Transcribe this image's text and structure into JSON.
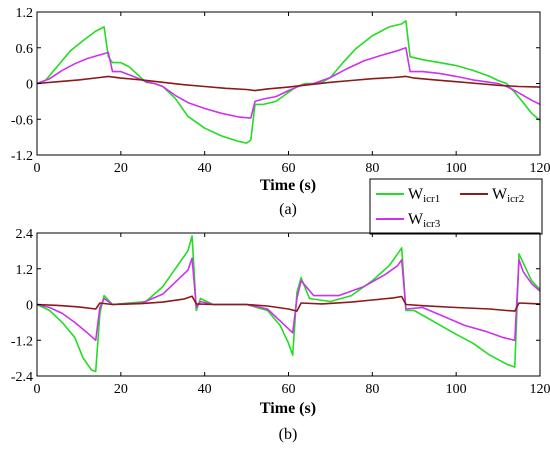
{
  "chart_data": [
    {
      "type": "line",
      "caption": "(a)",
      "xlabel": "Time (s)",
      "ylabel": "",
      "xlim": [
        0,
        120
      ],
      "ylim": [
        -1.2,
        1.2
      ],
      "xticks": [
        "0",
        "20",
        "40",
        "60",
        "80",
        "100",
        "120"
      ],
      "yticks": [
        "1.2",
        "0.6",
        "0",
        "-0.6",
        "-1.2"
      ],
      "grid": false,
      "series": [
        {
          "name": "W_icr1",
          "color": "#22dd22",
          "x": [
            0,
            2,
            5,
            8,
            11,
            14,
            16,
            17,
            18,
            20,
            22,
            24,
            26,
            28,
            30,
            33,
            36,
            40,
            44,
            48,
            50,
            51,
            52,
            54,
            57,
            60,
            62,
            64,
            66,
            68,
            70,
            73,
            76,
            80,
            84,
            87,
            88,
            89,
            92,
            96,
            100,
            104,
            108,
            110,
            112,
            114,
            116,
            118,
            120
          ],
          "y": [
            0,
            0.05,
            0.3,
            0.55,
            0.72,
            0.88,
            0.95,
            0.45,
            0.35,
            0.35,
            0.28,
            0.15,
            0.02,
            0,
            -0.05,
            -0.25,
            -0.55,
            -0.75,
            -0.88,
            -0.97,
            -1.0,
            -0.95,
            -0.35,
            -0.35,
            -0.3,
            -0.15,
            -0.05,
            0,
            0,
            0.02,
            0.1,
            0.35,
            0.58,
            0.8,
            0.95,
            1.0,
            1.05,
            0.45,
            0.4,
            0.35,
            0.3,
            0.22,
            0.12,
            0.05,
            0,
            -0.15,
            -0.32,
            -0.5,
            -0.62
          ]
        },
        {
          "name": "W_icr2",
          "color": "#8b1a1a",
          "x": [
            0,
            5,
            10,
            15,
            17,
            20,
            25,
            30,
            35,
            40,
            45,
            50,
            52,
            55,
            60,
            65,
            70,
            75,
            80,
            85,
            88,
            90,
            95,
            100,
            105,
            110,
            115,
            120
          ],
          "y": [
            0,
            0.03,
            0.06,
            0.1,
            0.12,
            0.09,
            0.06,
            0.02,
            -0.02,
            -0.05,
            -0.08,
            -0.1,
            -0.12,
            -0.09,
            -0.06,
            -0.02,
            0.02,
            0.05,
            0.08,
            0.1,
            0.12,
            0.09,
            0.06,
            0.03,
            0,
            -0.03,
            -0.05,
            -0.06
          ]
        },
        {
          "name": "W_icr3",
          "color": "#cc33ee",
          "x": [
            0,
            3,
            6,
            9,
            12,
            15,
            17,
            18,
            20,
            23,
            26,
            28,
            30,
            33,
            36,
            40,
            44,
            48,
            51,
            52,
            54,
            57,
            60,
            63,
            66,
            70,
            74,
            78,
            82,
            86,
            88,
            89,
            92,
            96,
            100,
            104,
            108,
            110,
            112,
            114,
            116,
            118,
            120
          ],
          "y": [
            0,
            0.08,
            0.22,
            0.33,
            0.42,
            0.48,
            0.52,
            0.2,
            0.2,
            0.12,
            0.03,
            0,
            -0.05,
            -0.2,
            -0.32,
            -0.42,
            -0.5,
            -0.56,
            -0.58,
            -0.3,
            -0.26,
            -0.22,
            -0.12,
            -0.03,
            0,
            0.1,
            0.25,
            0.38,
            0.47,
            0.55,
            0.6,
            0.2,
            0.2,
            0.17,
            0.12,
            0.06,
            0.02,
            0,
            -0.05,
            -0.12,
            -0.2,
            -0.28,
            -0.35
          ]
        }
      ]
    },
    {
      "type": "line",
      "caption": "(b)",
      "xlabel": "Time (s)",
      "ylabel": "",
      "xlim": [
        0,
        120
      ],
      "ylim": [
        -2.4,
        2.4
      ],
      "xticks": [
        "0",
        "20",
        "40",
        "60",
        "80",
        "100",
        "120"
      ],
      "yticks": [
        "2.4",
        "1.2",
        "0",
        "-1.2",
        "-2.4"
      ],
      "grid": false,
      "series": [
        {
          "name": "W_icr1",
          "color": "#22dd22",
          "x": [
            0,
            3,
            6,
            9,
            11,
            13,
            14,
            15,
            16,
            18,
            22,
            26,
            30,
            33,
            36,
            37,
            38,
            39,
            42,
            50,
            55,
            58,
            60,
            61,
            62,
            63,
            65,
            70,
            75,
            80,
            84,
            86,
            87,
            88,
            90,
            95,
            100,
            104,
            108,
            112,
            114,
            115,
            116,
            118,
            120
          ],
          "y": [
            0,
            -0.2,
            -0.6,
            -1.1,
            -1.8,
            -2.2,
            -2.25,
            -0.3,
            0.3,
            0,
            0.05,
            0.1,
            0.6,
            1.2,
            1.8,
            2.3,
            -0.2,
            0.2,
            0,
            0,
            -0.2,
            -0.7,
            -1.3,
            -1.7,
            0.4,
            0.9,
            0.2,
            0.1,
            0.3,
            0.8,
            1.3,
            1.7,
            1.9,
            -0.2,
            -0.2,
            -0.6,
            -1.0,
            -1.3,
            -1.7,
            -2.0,
            -2.1,
            1.7,
            1.4,
            0.8,
            0.5
          ]
        },
        {
          "name": "W_icr2",
          "color": "#8b1a1a",
          "x": [
            0,
            5,
            10,
            14,
            15,
            18,
            25,
            30,
            35,
            37,
            38,
            42,
            50,
            55,
            60,
            62,
            63,
            68,
            75,
            80,
            85,
            87,
            88,
            92,
            100,
            108,
            112,
            114,
            115,
            118,
            120
          ],
          "y": [
            0,
            -0.03,
            -0.08,
            -0.15,
            0.05,
            0,
            0.03,
            0.08,
            0.18,
            0.28,
            0.02,
            0,
            0,
            -0.05,
            -0.15,
            -0.22,
            0.05,
            0.02,
            0.08,
            0.15,
            0.22,
            0.27,
            0,
            -0.04,
            -0.1,
            -0.15,
            -0.2,
            -0.22,
            0.05,
            0.03,
            0.02
          ]
        },
        {
          "name": "W_icr3",
          "color": "#cc33ee",
          "x": [
            0,
            3,
            6,
            9,
            12,
            14,
            15,
            16,
            18,
            25,
            30,
            33,
            36,
            37,
            38,
            39,
            42,
            50,
            55,
            58,
            61,
            62,
            63,
            66,
            72,
            78,
            83,
            86,
            87,
            88,
            92,
            97,
            102,
            107,
            111,
            114,
            115,
            116,
            118,
            120
          ],
          "y": [
            0,
            -0.1,
            -0.3,
            -0.6,
            -0.95,
            -1.2,
            -0.1,
            0.2,
            0,
            0.05,
            0.35,
            0.75,
            1.15,
            1.55,
            -0.1,
            0.1,
            0,
            0,
            -0.15,
            -0.55,
            -0.95,
            0.2,
            0.8,
            0.3,
            0.3,
            0.6,
            1.0,
            1.3,
            1.5,
            -0.15,
            -0.1,
            -0.4,
            -0.7,
            -0.9,
            -1.1,
            -1.2,
            1.5,
            1.1,
            0.7,
            0.45
          ]
        }
      ]
    }
  ],
  "legend": {
    "position": "between-panels, right",
    "items": [
      {
        "label": "W",
        "sub": "icr1",
        "color": "#22dd22"
      },
      {
        "label": "W",
        "sub": "icr2",
        "color": "#8b1a1a"
      },
      {
        "label": "W",
        "sub": "icr3",
        "color": "#cc33ee"
      }
    ]
  }
}
